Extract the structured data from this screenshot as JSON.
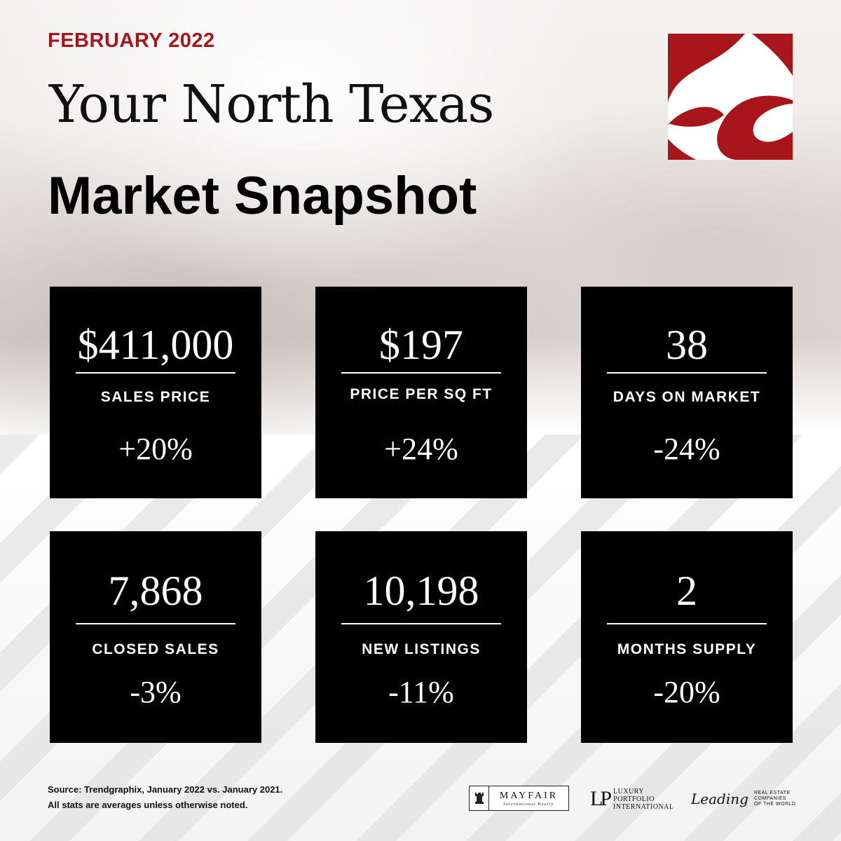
{
  "header": {
    "month": "FEBRUARY 2022",
    "title_line1": "Your North Texas",
    "title_line2": "Market Snapshot"
  },
  "colors": {
    "brand_red": "#a8161c",
    "tile_bg": "#000000",
    "tile_text": "#ffffff"
  },
  "stats": [
    {
      "value": "$411,000",
      "label": "SALES PRICE",
      "change": "+20%"
    },
    {
      "value": "$197",
      "label": "PRICE PER SQ FT",
      "change": "+24%"
    },
    {
      "value": "38",
      "label": "DAYS ON MARKET",
      "change": "-24%"
    },
    {
      "value": "7,868",
      "label": "CLOSED SALES",
      "change": "-3%"
    },
    {
      "value": "10,198",
      "label": "NEW LISTINGS",
      "change": "-11%"
    },
    {
      "value": "2",
      "label": "MONTHS SUPPLY",
      "change": "-20%"
    }
  ],
  "footer": {
    "source_line1": "Source: Trendgraphix, January 2022 vs. January 2021.",
    "source_line2": "All stats are averages unless otherwise noted."
  },
  "partners": {
    "mayfair_name": "MAYFAIR",
    "mayfair_sub": "International Realty",
    "lpi_mark": "LP",
    "lpi_line1": "LUXURY",
    "lpi_line2": "PORTFOLIO",
    "lpi_line3": "INTERNATIONAL",
    "leading_script": "Leading",
    "leading_line1": "REAL ESTATE",
    "leading_line2": "COMPANIES",
    "leading_line3": "OF THE WORLD"
  },
  "icons": {
    "logo": "brand-logo-icon",
    "mayfair_crest": "rook-crest-icon"
  }
}
